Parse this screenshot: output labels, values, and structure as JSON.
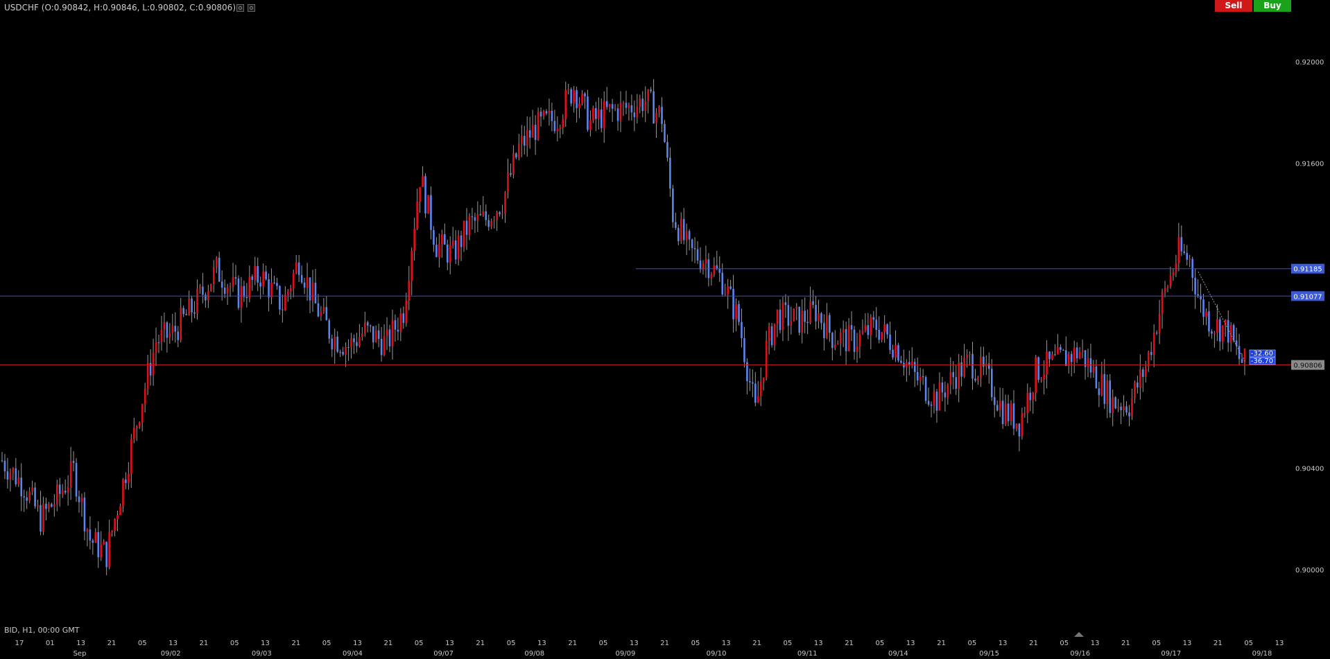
{
  "header": {
    "title": "USDCHF (O:0.90842, H:0.90846, L:0.90802, C:0.90806)",
    "icons": [
      "settings-icon",
      "gear-icon"
    ]
  },
  "trade": {
    "sell_label": "Sell",
    "buy_label": "Buy"
  },
  "footer": {
    "info": "BID, H1, 00:00 GMT"
  },
  "colors": {
    "up": "#e0101b",
    "down": "#5b86f0",
    "wick": "#9a9a9a",
    "hline_blue": "#3a4fd8",
    "hline_red": "#d01818",
    "bg": "#000000"
  },
  "chart_data": {
    "type": "candlestick",
    "symbol": "USDCHF",
    "timeframe": "H1",
    "ylim": [
      0.8985,
      0.921
    ],
    "y_ticks": [
      "0.92000",
      "0.91600",
      "0.90400",
      "0.90000"
    ],
    "y_tick_values": [
      0.92,
      0.916,
      0.904,
      0.9
    ],
    "price_levels": [
      {
        "label": "0.91185",
        "value": 0.91185,
        "color": "#3a4fd8",
        "from_index": 0.51
      },
      {
        "label": "0.91077",
        "value": 0.91077,
        "color": "#3a4fd8",
        "from_index": 0
      },
      {
        "label": "0.90806",
        "value": 0.90806,
        "color": "#d01818",
        "from_index": 0,
        "current": true
      }
    ],
    "pnl_labels": [
      "-32.60",
      "-36.70"
    ],
    "x_hours": [
      "17",
      "01",
      "13",
      "21",
      "05",
      "13",
      "21",
      "05",
      "13",
      "21",
      "05",
      "13",
      "21",
      "05",
      "13",
      "21",
      "05",
      "13",
      "21",
      "05",
      "13",
      "21",
      "05",
      "13",
      "21",
      "05",
      "13",
      "21",
      "05",
      "13",
      "21",
      "05",
      "13",
      "21",
      "05",
      "13",
      "21",
      "05",
      "13",
      "21",
      "05",
      "13"
    ],
    "x_dates": [
      "Sep",
      "09/02",
      "09/03",
      "09/04",
      "09/07",
      "09/08",
      "09/09",
      "09/10",
      "09/11",
      "09/14",
      "09/15",
      "09/16",
      "09/17",
      "09/18"
    ],
    "path_anchors": [
      [
        0,
        0.9043
      ],
      [
        8,
        0.9033
      ],
      [
        14,
        0.902
      ],
      [
        20,
        0.9028
      ],
      [
        26,
        0.9039
      ],
      [
        32,
        0.9012
      ],
      [
        38,
        0.9006
      ],
      [
        44,
        0.9034
      ],
      [
        50,
        0.9063
      ],
      [
        56,
        0.909
      ],
      [
        62,
        0.9093
      ],
      [
        70,
        0.9104
      ],
      [
        78,
        0.9118
      ],
      [
        86,
        0.9108
      ],
      [
        94,
        0.9116
      ],
      [
        102,
        0.9104
      ],
      [
        108,
        0.9122
      ],
      [
        114,
        0.9104
      ],
      [
        120,
        0.9092
      ],
      [
        126,
        0.9088
      ],
      [
        132,
        0.9094
      ],
      [
        140,
        0.9089
      ],
      [
        146,
        0.9102
      ],
      [
        152,
        0.9155
      ],
      [
        158,
        0.9128
      ],
      [
        164,
        0.9124
      ],
      [
        170,
        0.9136
      ],
      [
        176,
        0.9138
      ],
      [
        182,
        0.9145
      ],
      [
        188,
        0.9166
      ],
      [
        194,
        0.9174
      ],
      [
        202,
        0.9178
      ],
      [
        208,
        0.919
      ],
      [
        214,
        0.9176
      ],
      [
        220,
        0.918
      ],
      [
        228,
        0.9182
      ],
      [
        234,
        0.9185
      ],
      [
        240,
        0.9178
      ],
      [
        244,
        0.914
      ],
      [
        250,
        0.9125
      ],
      [
        256,
        0.9122
      ],
      [
        262,
        0.9114
      ],
      [
        268,
        0.9098
      ],
      [
        274,
        0.9062
      ],
      [
        278,
        0.9087
      ],
      [
        282,
        0.91
      ],
      [
        290,
        0.9098
      ],
      [
        296,
        0.9102
      ],
      [
        302,
        0.9092
      ],
      [
        310,
        0.909
      ],
      [
        318,
        0.9096
      ],
      [
        326,
        0.9087
      ],
      [
        332,
        0.9076
      ],
      [
        340,
        0.9067
      ],
      [
        346,
        0.9076
      ],
      [
        352,
        0.9082
      ],
      [
        358,
        0.9076
      ],
      [
        364,
        0.9063
      ],
      [
        370,
        0.9058
      ],
      [
        376,
        0.9078
      ],
      [
        384,
        0.9082
      ],
      [
        392,
        0.9086
      ],
      [
        398,
        0.9076
      ],
      [
        404,
        0.9066
      ],
      [
        410,
        0.9065
      ],
      [
        416,
        0.908
      ],
      [
        422,
        0.9106
      ],
      [
        428,
        0.9125
      ],
      [
        432,
        0.9122
      ],
      [
        436,
        0.9104
      ],
      [
        440,
        0.9097
      ],
      [
        446,
        0.9094
      ],
      [
        450,
        0.9083
      ],
      [
        452,
        0.9081
      ]
    ]
  }
}
